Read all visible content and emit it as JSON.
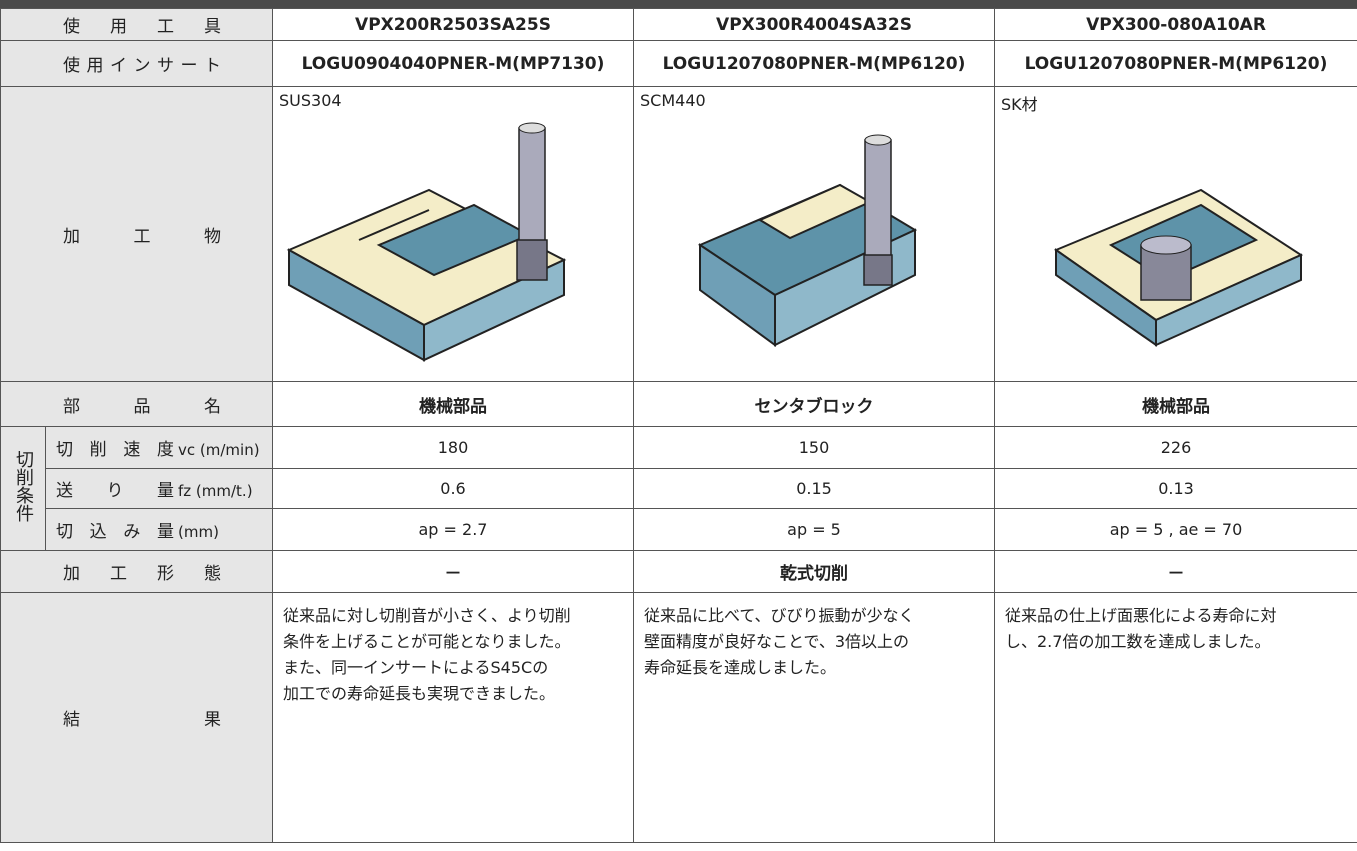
{
  "table": {
    "tool_row": {
      "label": "使用工具",
      "cells": [
        "VPX200R2503SA25S",
        "VPX300R4004SA32S",
        "VPX300-080A10AR"
      ]
    },
    "insert_row": {
      "label": "使用インサート",
      "cells": [
        "LOGU0904040PNER-M(MP7130)",
        "LOGU1207080PNER-M(MP6120)",
        "LOGU1207080PNER-M(MP6120)"
      ]
    },
    "workpiece_row": {
      "label": "加工物",
      "cells": [
        "SUS304",
        "SCM440",
        "SK材"
      ]
    },
    "part_row": {
      "label": "部品名",
      "cells": [
        "機械部品",
        "センタブロック",
        "機械部品"
      ]
    },
    "condition_group": "切削条件",
    "speed_row": {
      "label": "切削速度",
      "unit": "vc (m/min)",
      "cells": [
        180,
        150,
        226
      ]
    },
    "feed_row": {
      "label": "送り量",
      "unit": "fz (mm/t.)",
      "cells": [
        0.6,
        0.15,
        0.13
      ]
    },
    "depth_row": {
      "label": "切込み量",
      "unit": "(mm)",
      "cells": [
        "ap = 2.7",
        "ap = 5",
        "ap = 5 , ae = 70"
      ]
    },
    "mode_row": {
      "label": "加工形態",
      "cells": [
        "－",
        "乾式切削",
        "－"
      ]
    },
    "result_row": {
      "label": "結果",
      "cells": [
        [
          "従来品に対し切削音が小さく、より切削",
          "条件を上げることが可能となりました。",
          "また、同一インサートによるS45Cの",
          "加工での寿命延長も実現できました。"
        ],
        [
          "従来品に比べて、びびり振動が少なく",
          "壁面精度が良好なことで、3倍以上の",
          "寿命延長を達成しました。"
        ],
        [
          "従来品の仕上げ面悪化による寿命に対",
          "し、2.7倍の加工数を達成しました。"
        ]
      ]
    }
  }
}
